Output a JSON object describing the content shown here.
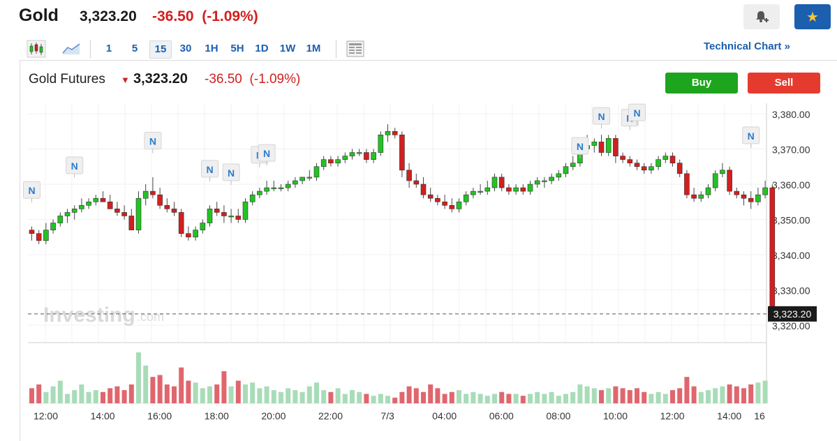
{
  "header": {
    "title": "Gold",
    "price": "3,323.20",
    "change": "-36.50",
    "change_pct": "(-1.09%)"
  },
  "toolbar": {
    "intervals": [
      "1",
      "5",
      "15",
      "30",
      "1H",
      "5H",
      "1D",
      "1W",
      "1M"
    ],
    "active_interval": "15",
    "technical_link": "Technical Chart »"
  },
  "instrument": {
    "name": "Gold Futures",
    "price": "3,323.20",
    "change": "-36.50",
    "change_pct": "(-1.09%)",
    "buy_label": "Buy",
    "sell_label": "Sell"
  },
  "watermark": {
    "brand": "Investing",
    "suffix": ".com"
  },
  "colors": {
    "up": "#22c322",
    "down": "#d21f1f",
    "vol_up": "#a8dcb8",
    "vol_down": "#e0666e",
    "accent": "#1b5fae"
  },
  "chart_data": {
    "type": "candlestick",
    "y_ticks": [
      "3,380.00",
      "3,370.00",
      "3,360.00",
      "3,350.00",
      "3,340.00",
      "3,330.00",
      "3,320.00"
    ],
    "y_tick_values": [
      3380,
      3370,
      3360,
      3350,
      3340,
      3330,
      3320
    ],
    "x_ticks": [
      "12:00",
      "14:00",
      "16:00",
      "18:00",
      "20:00",
      "22:00",
      "7/3",
      "04:00",
      "06:00",
      "08:00",
      "10:00",
      "12:00",
      "14:00",
      "16"
    ],
    "x_tick_index": [
      0,
      8,
      16,
      24,
      32,
      40,
      48,
      56,
      64,
      72,
      80,
      88,
      96,
      104
    ],
    "last_price": 3323.2,
    "last_price_label": "3,323.20",
    "news_marker": "N",
    "news_markers": [
      {
        "index": 0,
        "price": 3356
      },
      {
        "index": 6,
        "price": 3363
      },
      {
        "index": 17,
        "price": 3370
      },
      {
        "index": 25,
        "price": 3362
      },
      {
        "index": 28,
        "price": 3361
      },
      {
        "index": 32,
        "price": 3366
      },
      {
        "index": 33,
        "price": 3366.5
      },
      {
        "index": 77,
        "price": 3368.5
      },
      {
        "index": 80,
        "price": 3377
      },
      {
        "index": 84,
        "price": 3376.5
      },
      {
        "index": 85,
        "price": 3378
      },
      {
        "index": 101,
        "price": 3371.5
      }
    ],
    "candles": [
      {
        "o": 3347,
        "h": 3348,
        "l": 3344,
        "c": 3346,
        "v": 8
      },
      {
        "o": 3346,
        "h": 3347,
        "l": 3343,
        "c": 3344,
        "v": 10
      },
      {
        "o": 3344,
        "h": 3349,
        "l": 3343,
        "c": 3347,
        "v": 6
      },
      {
        "o": 3347,
        "h": 3350,
        "l": 3346,
        "c": 3349,
        "v": 9
      },
      {
        "o": 3349,
        "h": 3352,
        "l": 3348,
        "c": 3351,
        "v": 12
      },
      {
        "o": 3351,
        "h": 3353,
        "l": 3349,
        "c": 3352,
        "v": 5
      },
      {
        "o": 3352,
        "h": 3354,
        "l": 3350,
        "c": 3353,
        "v": 7
      },
      {
        "o": 3353,
        "h": 3356,
        "l": 3352,
        "c": 3354,
        "v": 10
      },
      {
        "o": 3354,
        "h": 3356,
        "l": 3353,
        "c": 3355,
        "v": 6
      },
      {
        "o": 3355,
        "h": 3357,
        "l": 3354,
        "c": 3356,
        "v": 7
      },
      {
        "o": 3356,
        "h": 3358,
        "l": 3355,
        "c": 3355,
        "v": 6
      },
      {
        "o": 3355,
        "h": 3357,
        "l": 3353,
        "c": 3353,
        "v": 8
      },
      {
        "o": 3353,
        "h": 3355,
        "l": 3351,
        "c": 3352,
        "v": 9
      },
      {
        "o": 3352,
        "h": 3354,
        "l": 3350,
        "c": 3351,
        "v": 7
      },
      {
        "o": 3351,
        "h": 3353,
        "l": 3347,
        "c": 3347,
        "v": 10
      },
      {
        "o": 3347,
        "h": 3358,
        "l": 3346,
        "c": 3356,
        "v": 27
      },
      {
        "o": 3356,
        "h": 3360,
        "l": 3354,
        "c": 3358,
        "v": 20
      },
      {
        "o": 3358,
        "h": 3362,
        "l": 3356,
        "c": 3357,
        "v": 14
      },
      {
        "o": 3357,
        "h": 3359,
        "l": 3353,
        "c": 3354,
        "v": 15
      },
      {
        "o": 3354,
        "h": 3356,
        "l": 3352,
        "c": 3353,
        "v": 10
      },
      {
        "o": 3353,
        "h": 3355,
        "l": 3351,
        "c": 3352,
        "v": 9
      },
      {
        "o": 3352,
        "h": 3353,
        "l": 3345,
        "c": 3346,
        "v": 19
      },
      {
        "o": 3346,
        "h": 3348,
        "l": 3344,
        "c": 3345,
        "v": 12
      },
      {
        "o": 3345,
        "h": 3348,
        "l": 3344,
        "c": 3347,
        "v": 11
      },
      {
        "o": 3347,
        "h": 3350,
        "l": 3346,
        "c": 3349,
        "v": 8
      },
      {
        "o": 3349,
        "h": 3354,
        "l": 3348,
        "c": 3353,
        "v": 9
      },
      {
        "o": 3353,
        "h": 3355,
        "l": 3351,
        "c": 3352,
        "v": 10
      },
      {
        "o": 3352,
        "h": 3354,
        "l": 3349,
        "c": 3351,
        "v": 17
      },
      {
        "o": 3351,
        "h": 3353,
        "l": 3349,
        "c": 3351,
        "v": 9
      },
      {
        "o": 3351,
        "h": 3353,
        "l": 3349,
        "c": 3350,
        "v": 12
      },
      {
        "o": 3350,
        "h": 3356,
        "l": 3349,
        "c": 3355,
        "v": 10
      },
      {
        "o": 3355,
        "h": 3358,
        "l": 3354,
        "c": 3357,
        "v": 11
      },
      {
        "o": 3357,
        "h": 3359,
        "l": 3356,
        "c": 3358,
        "v": 8
      },
      {
        "o": 3358,
        "h": 3361,
        "l": 3357,
        "c": 3359,
        "v": 9
      },
      {
        "o": 3359,
        "h": 3361,
        "l": 3358,
        "c": 3359,
        "v": 7
      },
      {
        "o": 3359,
        "h": 3360,
        "l": 3358,
        "c": 3359,
        "v": 6
      },
      {
        "o": 3359,
        "h": 3361,
        "l": 3358,
        "c": 3360,
        "v": 8
      },
      {
        "o": 3360,
        "h": 3362,
        "l": 3359,
        "c": 3361,
        "v": 7
      },
      {
        "o": 3361,
        "h": 3362,
        "l": 3360,
        "c": 3362,
        "v": 6
      },
      {
        "o": 3362,
        "h": 3364,
        "l": 3361,
        "c": 3362,
        "v": 9
      },
      {
        "o": 3362,
        "h": 3366,
        "l": 3361,
        "c": 3365,
        "v": 11
      },
      {
        "o": 3365,
        "h": 3368,
        "l": 3364,
        "c": 3367,
        "v": 7
      },
      {
        "o": 3367,
        "h": 3368,
        "l": 3365,
        "c": 3366,
        "v": 6
      },
      {
        "o": 3366,
        "h": 3368,
        "l": 3365,
        "c": 3367,
        "v": 8
      },
      {
        "o": 3367,
        "h": 3369,
        "l": 3366,
        "c": 3368,
        "v": 5
      },
      {
        "o": 3368,
        "h": 3370,
        "l": 3367,
        "c": 3369,
        "v": 7
      },
      {
        "o": 3369,
        "h": 3370,
        "l": 3368,
        "c": 3369,
        "v": 6
      },
      {
        "o": 3369,
        "h": 3370,
        "l": 3366,
        "c": 3367,
        "v": 5
      },
      {
        "o": 3367,
        "h": 3370,
        "l": 3366,
        "c": 3369,
        "v": 4
      },
      {
        "o": 3369,
        "h": 3375,
        "l": 3368,
        "c": 3374,
        "v": 5
      },
      {
        "o": 3374,
        "h": 3377,
        "l": 3372,
        "c": 3375,
        "v": 4
      },
      {
        "o": 3375,
        "h": 3376,
        "l": 3373,
        "c": 3374,
        "v": 3
      },
      {
        "o": 3374,
        "h": 3375,
        "l": 3362,
        "c": 3364,
        "v": 6
      },
      {
        "o": 3364,
        "h": 3366,
        "l": 3359,
        "c": 3361,
        "v": 9
      },
      {
        "o": 3361,
        "h": 3363,
        "l": 3359,
        "c": 3360,
        "v": 8
      },
      {
        "o": 3360,
        "h": 3362,
        "l": 3356,
        "c": 3357,
        "v": 6
      },
      {
        "o": 3357,
        "h": 3359,
        "l": 3355,
        "c": 3356,
        "v": 10
      },
      {
        "o": 3356,
        "h": 3357,
        "l": 3354,
        "c": 3355,
        "v": 8
      },
      {
        "o": 3355,
        "h": 3357,
        "l": 3353,
        "c": 3354,
        "v": 5
      },
      {
        "o": 3354,
        "h": 3356,
        "l": 3352,
        "c": 3353,
        "v": 6
      },
      {
        "o": 3353,
        "h": 3356,
        "l": 3352,
        "c": 3355,
        "v": 7
      },
      {
        "o": 3355,
        "h": 3358,
        "l": 3354,
        "c": 3357,
        "v": 5
      },
      {
        "o": 3357,
        "h": 3359,
        "l": 3356,
        "c": 3358,
        "v": 6
      },
      {
        "o": 3358,
        "h": 3360,
        "l": 3357,
        "c": 3358,
        "v": 5
      },
      {
        "o": 3358,
        "h": 3361,
        "l": 3357,
        "c": 3359,
        "v": 4
      },
      {
        "o": 3359,
        "h": 3363,
        "l": 3358,
        "c": 3362,
        "v": 5
      },
      {
        "o": 3362,
        "h": 3363,
        "l": 3358,
        "c": 3359,
        "v": 6
      },
      {
        "o": 3359,
        "h": 3360,
        "l": 3357,
        "c": 3358,
        "v": 5
      },
      {
        "o": 3358,
        "h": 3360,
        "l": 3357,
        "c": 3359,
        "v": 5
      },
      {
        "o": 3359,
        "h": 3360,
        "l": 3357,
        "c": 3358,
        "v": 4
      },
      {
        "o": 3358,
        "h": 3361,
        "l": 3357,
        "c": 3360,
        "v": 5
      },
      {
        "o": 3360,
        "h": 3362,
        "l": 3359,
        "c": 3361,
        "v": 6
      },
      {
        "o": 3361,
        "h": 3362,
        "l": 3359,
        "c": 3361,
        "v": 5
      },
      {
        "o": 3361,
        "h": 3363,
        "l": 3360,
        "c": 3362,
        "v": 6
      },
      {
        "o": 3362,
        "h": 3364,
        "l": 3361,
        "c": 3363,
        "v": 4
      },
      {
        "o": 3363,
        "h": 3366,
        "l": 3362,
        "c": 3365,
        "v": 5
      },
      {
        "o": 3365,
        "h": 3368,
        "l": 3364,
        "c": 3366,
        "v": 6
      },
      {
        "o": 3366,
        "h": 3371,
        "l": 3365,
        "c": 3370,
        "v": 10
      },
      {
        "o": 3370,
        "h": 3374,
        "l": 3369,
        "c": 3371,
        "v": 9
      },
      {
        "o": 3371,
        "h": 3373,
        "l": 3369,
        "c": 3372,
        "v": 8
      },
      {
        "o": 3372,
        "h": 3374,
        "l": 3368,
        "c": 3369,
        "v": 7
      },
      {
        "o": 3369,
        "h": 3374,
        "l": 3368,
        "c": 3373,
        "v": 8
      },
      {
        "o": 3373,
        "h": 3374,
        "l": 3366,
        "c": 3368,
        "v": 9
      },
      {
        "o": 3368,
        "h": 3369,
        "l": 3366,
        "c": 3367,
        "v": 8
      },
      {
        "o": 3367,
        "h": 3368,
        "l": 3365,
        "c": 3366,
        "v": 7
      },
      {
        "o": 3366,
        "h": 3367,
        "l": 3364,
        "c": 3365,
        "v": 8
      },
      {
        "o": 3365,
        "h": 3366,
        "l": 3363,
        "c": 3364,
        "v": 6
      },
      {
        "o": 3364,
        "h": 3366,
        "l": 3363,
        "c": 3365,
        "v": 5
      },
      {
        "o": 3365,
        "h": 3368,
        "l": 3364,
        "c": 3367,
        "v": 6
      },
      {
        "o": 3367,
        "h": 3369,
        "l": 3366,
        "c": 3368,
        "v": 5
      },
      {
        "o": 3368,
        "h": 3369,
        "l": 3365,
        "c": 3366,
        "v": 7
      },
      {
        "o": 3366,
        "h": 3367,
        "l": 3362,
        "c": 3363,
        "v": 8
      },
      {
        "o": 3363,
        "h": 3364,
        "l": 3356,
        "c": 3357,
        "v": 14
      },
      {
        "o": 3357,
        "h": 3359,
        "l": 3355,
        "c": 3356,
        "v": 9
      },
      {
        "o": 3356,
        "h": 3358,
        "l": 3355,
        "c": 3357,
        "v": 6
      },
      {
        "o": 3357,
        "h": 3360,
        "l": 3356,
        "c": 3359,
        "v": 7
      },
      {
        "o": 3359,
        "h": 3364,
        "l": 3358,
        "c": 3363,
        "v": 8
      },
      {
        "o": 3363,
        "h": 3366,
        "l": 3362,
        "c": 3364,
        "v": 9
      },
      {
        "o": 3364,
        "h": 3365,
        "l": 3357,
        "c": 3358,
        "v": 10
      },
      {
        "o": 3358,
        "h": 3359,
        "l": 3356,
        "c": 3357,
        "v": 9
      },
      {
        "o": 3357,
        "h": 3358,
        "l": 3354,
        "c": 3356,
        "v": 8
      },
      {
        "o": 3356,
        "h": 3358,
        "l": 3353,
        "c": 3355,
        "v": 10
      },
      {
        "o": 3355,
        "h": 3359,
        "l": 3354,
        "c": 3357,
        "v": 11
      },
      {
        "o": 3357,
        "h": 3361,
        "l": 3356,
        "c": 3359,
        "v": 12
      },
      {
        "o": 3359,
        "h": 3360,
        "l": 3322,
        "c": 3323.2,
        "v": 0
      }
    ]
  }
}
